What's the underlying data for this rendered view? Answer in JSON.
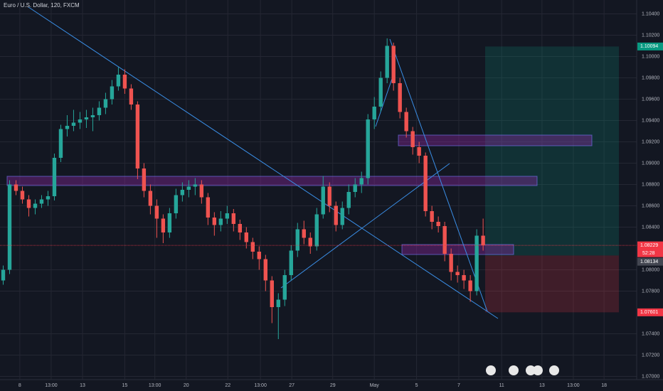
{
  "chart_data": {
    "type": "candlestick",
    "title": "Euro / U.S. Dollar, 120, FXCM",
    "up_color": "#26a69a",
    "down_color": "#ef5350",
    "grid": true,
    "x": [
      0,
      1,
      2,
      3,
      4,
      5,
      6,
      7,
      8,
      9,
      10,
      11,
      12,
      13,
      14,
      15,
      16,
      17,
      18,
      19,
      20,
      21,
      22,
      23,
      24,
      25,
      26,
      27,
      28,
      29,
      30,
      31,
      32,
      33,
      34,
      35,
      36,
      37,
      38,
      39,
      40,
      41,
      42,
      43,
      44,
      45,
      46,
      47,
      48,
      49,
      50,
      51,
      52,
      53,
      54,
      55,
      56,
      57,
      58,
      59,
      60,
      61,
      62,
      63,
      64,
      65,
      66,
      67,
      68,
      69,
      70,
      71,
      72,
      73,
      74,
      75
    ],
    "open": [
      1.079,
      1.08,
      1.088,
      1.0874,
      1.0866,
      1.0858,
      1.0862,
      1.0866,
      1.0869,
      1.0905,
      1.0932,
      1.0935,
      1.0938,
      1.0941,
      1.0943,
      1.0945,
      1.0952,
      1.096,
      1.0972,
      1.0983,
      1.097,
      1.0955,
      1.0895,
      1.0874,
      1.086,
      1.0848,
      1.0835,
      1.0853,
      1.087,
      1.0875,
      1.0878,
      1.088,
      1.0868,
      1.0849,
      1.0842,
      1.0848,
      1.0853,
      1.0843,
      1.0835,
      1.0826,
      1.0817,
      1.081,
      1.079,
      1.0765,
      1.0772,
      1.0795,
      1.0818,
      1.0838,
      1.083,
      1.0822,
      1.0852,
      1.0878,
      1.086,
      1.0842,
      1.0858,
      1.0873,
      1.088,
      1.0886,
      1.0941,
      1.0953,
      1.098,
      1.101,
      1.0975,
      1.0948,
      1.093,
      1.0915,
      1.0907,
      1.0855,
      1.0845,
      1.0841,
      1.0815,
      1.0798,
      1.0795,
      1.079,
      1.078,
      1.0832
    ],
    "high": [
      1.0804,
      1.0884,
      1.0884,
      1.0878,
      1.087,
      1.0866,
      1.087,
      1.0874,
      1.0909,
      1.0936,
      1.0945,
      1.095,
      1.0948,
      1.095,
      1.0952,
      1.0958,
      1.0966,
      1.0978,
      1.099,
      1.0988,
      1.0974,
      1.0958,
      1.09,
      1.088,
      1.0866,
      1.0852,
      1.0858,
      1.0876,
      1.0882,
      1.0884,
      1.0886,
      1.0884,
      1.0872,
      1.0854,
      1.0855,
      1.086,
      1.0857,
      1.0847,
      1.084,
      1.083,
      1.0822,
      1.0814,
      1.0794,
      1.0778,
      1.08,
      1.0823,
      1.0844,
      1.0846,
      1.0835,
      1.0858,
      1.0888,
      1.0882,
      1.0864,
      1.0864,
      1.088,
      1.0886,
      1.0892,
      1.0946,
      1.0962,
      1.0986,
      1.1017,
      1.1013,
      1.098,
      1.0952,
      1.0934,
      1.092,
      1.091,
      1.086,
      1.085,
      1.0845,
      1.082,
      1.0804,
      1.08,
      1.0795,
      1.0838,
      1.0848
    ],
    "low": [
      1.0786,
      1.0796,
      1.087,
      1.0862,
      1.085,
      1.0852,
      1.0858,
      1.086,
      1.0865,
      1.0901,
      1.0925,
      1.093,
      1.0932,
      1.0933,
      1.093,
      1.094,
      1.0946,
      1.0955,
      1.0968,
      1.0965,
      1.095,
      1.0885,
      1.0868,
      1.0852,
      1.083,
      1.0825,
      1.083,
      1.0848,
      1.0864,
      1.0868,
      1.087,
      1.0862,
      1.0842,
      1.0832,
      1.0836,
      1.0843,
      1.0836,
      1.0828,
      1.082,
      1.081,
      1.08,
      1.078,
      1.075,
      1.0735,
      1.0766,
      1.079,
      1.0812,
      1.0824,
      1.0815,
      1.0818,
      1.0848,
      1.0854,
      1.0836,
      1.0838,
      1.0852,
      1.0868,
      1.0872,
      1.088,
      1.0932,
      1.0948,
      1.0975,
      1.0968,
      1.0942,
      1.0924,
      1.0908,
      1.09,
      1.085,
      1.0838,
      1.0835,
      1.0808,
      1.079,
      1.0788,
      1.0782,
      1.077,
      1.0776,
      1.0818
    ],
    "close": [
      1.08,
      1.088,
      1.0874,
      1.0866,
      1.0858,
      1.0862,
      1.0866,
      1.0869,
      1.0905,
      1.0932,
      1.0935,
      1.0938,
      1.0941,
      1.0943,
      1.0945,
      1.0952,
      1.096,
      1.0972,
      1.0983,
      1.097,
      1.0955,
      1.0895,
      1.0874,
      1.086,
      1.0848,
      1.0835,
      1.0853,
      1.087,
      1.0875,
      1.0878,
      1.088,
      1.0868,
      1.0849,
      1.0842,
      1.0848,
      1.0853,
      1.0843,
      1.0835,
      1.0826,
      1.0817,
      1.081,
      1.079,
      1.0765,
      1.0772,
      1.0795,
      1.0818,
      1.0838,
      1.083,
      1.0822,
      1.0852,
      1.0878,
      1.086,
      1.0842,
      1.0858,
      1.0873,
      1.088,
      1.0886,
      1.0941,
      1.0953,
      1.098,
      1.101,
      1.0975,
      1.0948,
      1.093,
      1.0915,
      1.0907,
      1.0855,
      1.0845,
      1.0841,
      1.0815,
      1.0798,
      1.0795,
      1.079,
      1.078,
      1.0832,
      1.0823
    ],
    "xlim": [
      -0.5,
      99
    ],
    "xticks": [
      {
        "value": 2.6,
        "label": "8"
      },
      {
        "value": 7.5,
        "label": "13:00"
      },
      {
        "value": 12.4,
        "label": "13"
      },
      {
        "value": 19.0,
        "label": "15"
      },
      {
        "value": 23.7,
        "label": "13:00"
      },
      {
        "value": 28.6,
        "label": "20"
      },
      {
        "value": 35.1,
        "label": "22"
      },
      {
        "value": 40.2,
        "label": "13:00"
      },
      {
        "value": 45.1,
        "label": "27"
      },
      {
        "value": 51.5,
        "label": "29"
      },
      {
        "value": 58.0,
        "label": "May"
      },
      {
        "value": 64.6,
        "label": "5"
      },
      {
        "value": 71.2,
        "label": "7"
      },
      {
        "value": 77.9,
        "label": "11"
      },
      {
        "value": 84.2,
        "label": "13"
      },
      {
        "value": 89.1,
        "label": "13:00"
      },
      {
        "value": 93.9,
        "label": "18"
      }
    ],
    "ylim": [
      1.0697,
      1.1053
    ],
    "yticks": [
      {
        "value": 1.07,
        "label": "1.07000"
      },
      {
        "value": 1.072,
        "label": "1.07200"
      },
      {
        "value": 1.074,
        "label": "1.07400"
      },
      {
        "value": 1.078,
        "label": "1.07800"
      },
      {
        "value": 1.08,
        "label": "1.08000"
      },
      {
        "value": 1.084,
        "label": "1.08400"
      },
      {
        "value": 1.086,
        "label": "1.08600"
      },
      {
        "value": 1.088,
        "label": "1.08800"
      },
      {
        "value": 1.09,
        "label": "1.09000"
      },
      {
        "value": 1.092,
        "label": "1.09200"
      },
      {
        "value": 1.094,
        "label": "1.09400"
      },
      {
        "value": 1.096,
        "label": "1.09600"
      },
      {
        "value": 1.098,
        "label": "1.09800"
      },
      {
        "value": 1.1,
        "label": "1.10000"
      },
      {
        "value": 1.102,
        "label": "1.10200"
      },
      {
        "value": 1.104,
        "label": "1.10400"
      }
    ],
    "price_labels": [
      {
        "value": 1.10094,
        "label": "1.10094",
        "color": "#089981"
      },
      {
        "value": 1.08229,
        "label": "1.08229",
        "color": "#f23645"
      },
      {
        "value": 1.08134,
        "label": "1.08134",
        "color": "#434651"
      },
      {
        "value": 1.07601,
        "label": "1.07601",
        "color": "#f23645"
      }
    ],
    "countdown": "52:28"
  }
}
